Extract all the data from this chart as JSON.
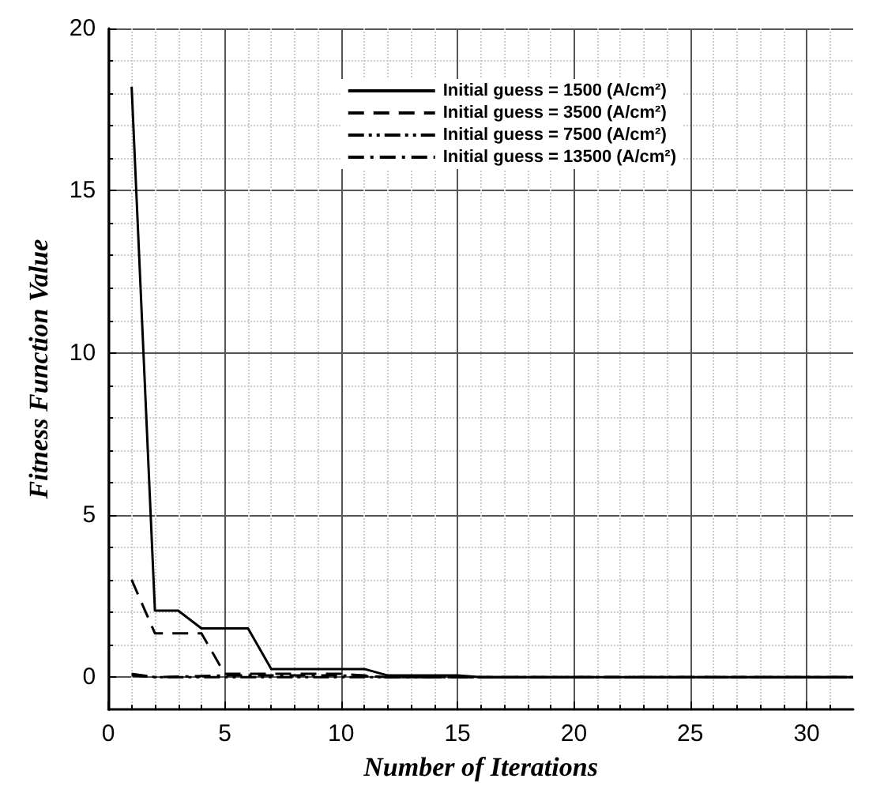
{
  "chart_data": {
    "type": "line",
    "xlabel": "Number of Iterations",
    "ylabel": "Fitness Function Value",
    "xlim": [
      0,
      32
    ],
    "xticks": [
      0,
      5,
      10,
      15,
      20,
      25,
      30
    ],
    "ylim": [
      -1,
      20
    ],
    "yticks": [
      0,
      5,
      10,
      15,
      20
    ],
    "grid": true,
    "legend": "top right",
    "marker": "none",
    "series": [
      {
        "name": "Initial guess = 1500 (A/cm²)",
        "color": "#000000",
        "line_style": "solid",
        "x": [
          1,
          2,
          3,
          4,
          6,
          7,
          11,
          12,
          15,
          16,
          32
        ],
        "values": [
          18.2,
          2.05,
          2.05,
          1.5,
          1.5,
          0.25,
          0.25,
          0.05,
          0.05,
          0,
          0
        ]
      },
      {
        "name": "Initial guess = 3500 (A/cm²)",
        "color": "#000000",
        "line_style": "dashed",
        "x": [
          1,
          2,
          4,
          5,
          10,
          12,
          32
        ],
        "values": [
          3,
          1.35,
          1.35,
          0.1,
          0.1,
          0,
          0
        ]
      },
      {
        "name": "Initial guess = 7500 (A/cm²)",
        "color": "#000000",
        "line_style": "dashdotdot",
        "x": [
          1,
          2,
          32
        ],
        "values": [
          0.1,
          0,
          0
        ]
      },
      {
        "name": "Initial guess = 13500 (A/cm²)",
        "color": "#000000",
        "line_style": "dashdot",
        "x": [
          1,
          2,
          5,
          10,
          12,
          32
        ],
        "values": [
          0.05,
          0,
          0.05,
          0.05,
          0,
          0
        ]
      }
    ]
  }
}
